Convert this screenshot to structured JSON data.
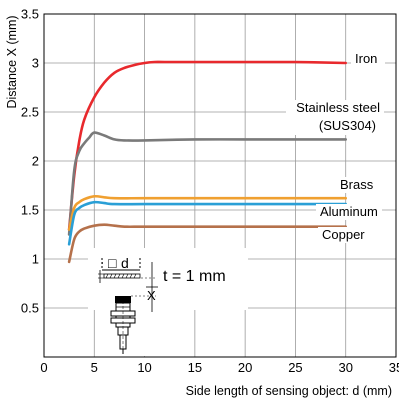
{
  "chart_data": {
    "type": "line",
    "title": "",
    "xlabel": "Side length of sensing object: d (mm)",
    "ylabel": "Distance X (mm)",
    "xlim": [
      0,
      35
    ],
    "ylim": [
      0,
      3.5
    ],
    "xticks": [
      "0",
      "5",
      "10",
      "15",
      "20",
      "25",
      "30",
      "35"
    ],
    "yticks": [
      "0.5",
      "1",
      "1.5",
      "2",
      "2.5",
      "3",
      "3.5"
    ],
    "grid": true,
    "legend": "inline labels at right end of each line",
    "series": [
      {
        "name": "Iron",
        "color": "#e8292d",
        "x": [
          2.5,
          3,
          3.5,
          4,
          5,
          6,
          7,
          8,
          9,
          10,
          11,
          12,
          15,
          20,
          25,
          30
        ],
        "y": [
          1.3,
          1.85,
          2.2,
          2.42,
          2.65,
          2.8,
          2.9,
          2.95,
          2.98,
          3.0,
          3.01,
          3.01,
          3.01,
          3.01,
          3.01,
          3.0
        ]
      },
      {
        "name": "Stainless steel",
        "name_line2": "(SUS304)",
        "color": "#7a7a7a",
        "x": [
          2.5,
          3,
          3.5,
          4,
          4.5,
          5,
          6,
          7,
          8,
          10,
          15,
          20,
          25,
          30
        ],
        "y": [
          1.25,
          1.9,
          2.1,
          2.18,
          2.24,
          2.29,
          2.26,
          2.22,
          2.21,
          2.21,
          2.22,
          2.22,
          2.22,
          2.22
        ]
      },
      {
        "name": "Brass",
        "color": "#f0a030",
        "x": [
          2.5,
          3,
          3.5,
          4,
          5,
          6,
          7,
          10,
          15,
          20,
          25,
          30
        ],
        "y": [
          1.3,
          1.52,
          1.58,
          1.61,
          1.64,
          1.63,
          1.62,
          1.62,
          1.62,
          1.62,
          1.62,
          1.62
        ]
      },
      {
        "name": "Aluminum",
        "color": "#2a9fd6",
        "x": [
          2.5,
          3,
          3.5,
          4,
          5,
          6,
          7,
          10,
          15,
          20,
          25,
          30
        ],
        "y": [
          1.15,
          1.45,
          1.52,
          1.55,
          1.58,
          1.57,
          1.56,
          1.56,
          1.56,
          1.56,
          1.56,
          1.56
        ]
      },
      {
        "name": "Copper",
        "color": "#b5714b",
        "x": [
          2.5,
          3,
          3.5,
          4,
          5,
          6,
          7,
          8,
          10,
          15,
          20,
          25,
          30
        ],
        "y": [
          0.97,
          1.2,
          1.28,
          1.31,
          1.34,
          1.35,
          1.34,
          1.33,
          1.33,
          1.33,
          1.33,
          1.33,
          1.33
        ]
      }
    ],
    "annotation": {
      "text": "t = 1 mm",
      "symbol_label": "d",
      "symbol_prefix": "□",
      "distance_label": "X"
    }
  }
}
